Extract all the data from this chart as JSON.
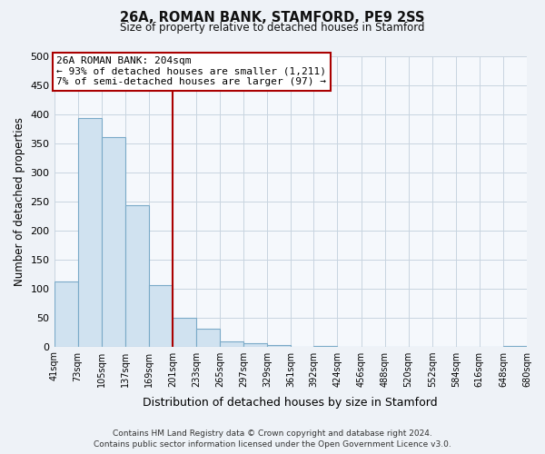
{
  "title": "26A, ROMAN BANK, STAMFORD, PE9 2SS",
  "subtitle": "Size of property relative to detached houses in Stamford",
  "xlabel": "Distribution of detached houses by size in Stamford",
  "ylabel": "Number of detached properties",
  "bar_values": [
    111,
    393,
    360,
    243,
    105,
    50,
    30,
    9,
    5,
    2,
    0,
    1,
    0,
    0,
    0,
    0,
    0,
    0,
    0,
    1
  ],
  "bin_edges": [
    41,
    73,
    105,
    137,
    169,
    201,
    233,
    265,
    297,
    329,
    361,
    392,
    424,
    456,
    488,
    520,
    552,
    584,
    616,
    648,
    680
  ],
  "bar_color": "#d0e2f0",
  "bar_edgecolor": "#7aaac8",
  "vline_x": 201,
  "vline_color": "#aa0000",
  "ylim": [
    0,
    500
  ],
  "yticks": [
    0,
    50,
    100,
    150,
    200,
    250,
    300,
    350,
    400,
    450,
    500
  ],
  "annotation_title": "26A ROMAN BANK: 204sqm",
  "annotation_line1": "← 93% of detached houses are smaller (1,211)",
  "annotation_line2": "7% of semi-detached houses are larger (97) →",
  "annotation_box_facecolor": "#ffffff",
  "annotation_box_edgecolor": "#aa0000",
  "footer_line1": "Contains HM Land Registry data © Crown copyright and database right 2024.",
  "footer_line2": "Contains public sector information licensed under the Open Government Licence v3.0.",
  "bg_color": "#eef2f7",
  "plot_bg_color": "#f5f8fc",
  "grid_color": "#c8d4e0"
}
